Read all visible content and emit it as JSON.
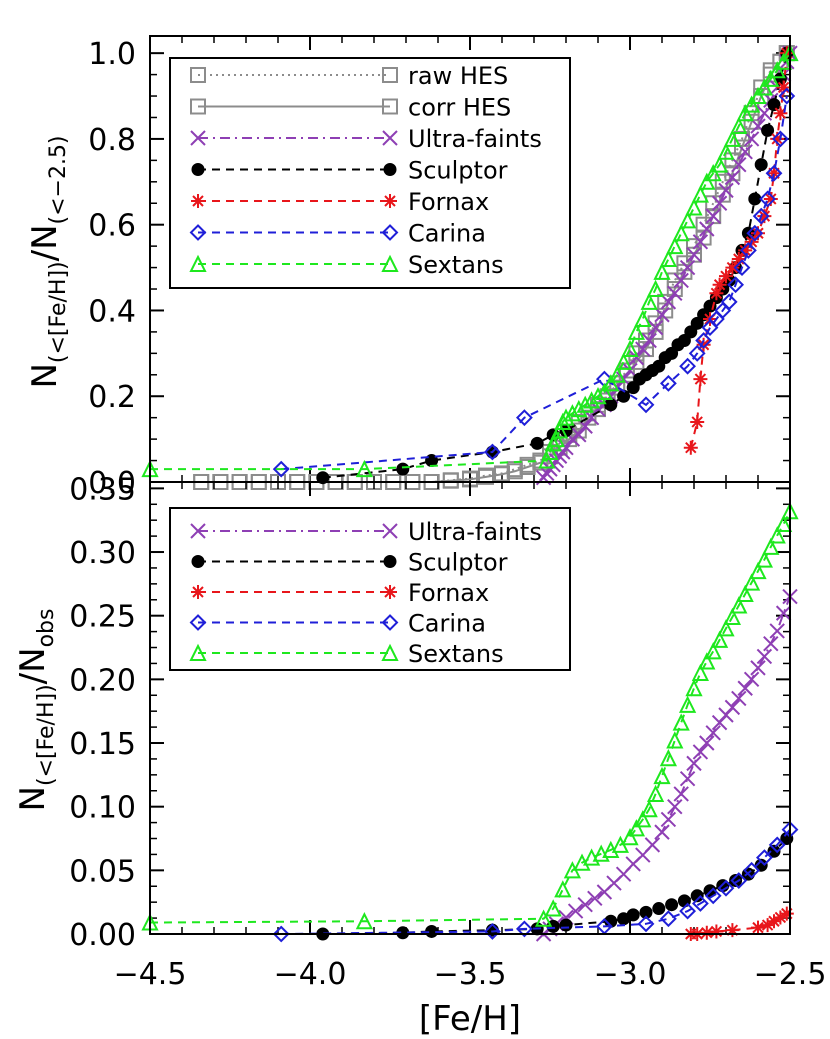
{
  "colors": {
    "raw_hes": "#8c8c8c",
    "corr_hes": "#8c8c8c",
    "ultra_faints": "#8e3fb4",
    "sculptor": "#000000",
    "fornax": "#e8161b",
    "carina": "#1f1fd8",
    "sextans": "#1ee81e"
  },
  "chart_data": [
    {
      "type": "line",
      "panel": "top",
      "ylabel": "N(<[Fe/H])/N(<-2.5)",
      "ylabel_parts": {
        "main": "N",
        "sub1": "(<[Fe/H])",
        "slash": "/N",
        "sub2": "(<−2.5)"
      },
      "xlim": [
        -4.5,
        -2.5
      ],
      "ylim": [
        0.0,
        1.04
      ],
      "yticks": [
        0.0,
        0.2,
        0.4,
        0.6,
        0.8,
        1.0
      ],
      "ytick_labels": [
        "0.0",
        "0.2",
        "0.4",
        "0.6",
        "0.8",
        "1.0"
      ],
      "legend_position": "top-left",
      "series": [
        {
          "key": "raw_hes",
          "name": "raw HES",
          "marker": "square",
          "linestyle": "dotted",
          "x": [
            -4.34,
            -4.28,
            -4.22,
            -4.16,
            -4.1,
            -4.04,
            -3.98,
            -3.92,
            -3.86,
            -3.8,
            -3.74,
            -3.68,
            -3.62,
            -3.56,
            -3.5,
            -3.45,
            -3.4,
            -3.36,
            -3.32,
            -3.28,
            -3.25,
            -3.22,
            -3.19,
            -3.16,
            -3.13,
            -3.1,
            -3.07,
            -3.04,
            -3.01,
            -2.98,
            -2.95,
            -2.92,
            -2.89,
            -2.86,
            -2.83,
            -2.8,
            -2.77,
            -2.74,
            -2.71,
            -2.68,
            -2.65,
            -2.62,
            -2.59,
            -2.56,
            -2.53,
            -2.51
          ],
          "y": [
            0.0,
            0.0,
            0.0,
            0.0,
            0.0,
            0.0,
            0.0,
            0.0,
            0.0,
            0.0,
            0.0,
            0.0,
            0.0,
            0.004,
            0.008,
            0.015,
            0.02,
            0.03,
            0.04,
            0.05,
            0.07,
            0.09,
            0.11,
            0.14,
            0.16,
            0.18,
            0.2,
            0.23,
            0.26,
            0.3,
            0.33,
            0.37,
            0.42,
            0.47,
            0.51,
            0.55,
            0.6,
            0.65,
            0.7,
            0.75,
            0.8,
            0.86,
            0.92,
            0.96,
            0.98,
            1.0
          ]
        },
        {
          "key": "corr_hes",
          "name": "corr HES",
          "marker": "square",
          "linestyle": "solid",
          "x": [
            -4.34,
            -4.28,
            -4.22,
            -4.16,
            -4.1,
            -4.04,
            -3.98,
            -3.92,
            -3.86,
            -3.8,
            -3.74,
            -3.68,
            -3.62,
            -3.56,
            -3.5,
            -3.45,
            -3.4,
            -3.36,
            -3.32,
            -3.28,
            -3.25,
            -3.22,
            -3.19,
            -3.16,
            -3.13,
            -3.1,
            -3.07,
            -3.04,
            -3.01,
            -2.98,
            -2.95,
            -2.92,
            -2.89,
            -2.86,
            -2.83,
            -2.8,
            -2.77,
            -2.74,
            -2.71,
            -2.68,
            -2.65,
            -2.62,
            -2.59,
            -2.56,
            -2.53,
            -2.51
          ],
          "y": [
            0.0,
            0.0,
            0.0,
            0.0,
            0.0,
            0.0,
            0.0,
            0.0,
            0.0,
            0.0,
            0.0,
            0.0,
            0.0,
            0.003,
            0.006,
            0.012,
            0.018,
            0.025,
            0.035,
            0.045,
            0.06,
            0.08,
            0.1,
            0.12,
            0.15,
            0.17,
            0.19,
            0.22,
            0.25,
            0.28,
            0.31,
            0.35,
            0.4,
            0.45,
            0.49,
            0.53,
            0.57,
            0.62,
            0.67,
            0.72,
            0.78,
            0.84,
            0.9,
            0.95,
            0.98,
            1.0
          ]
        },
        {
          "key": "ultra_faints",
          "name": "Ultra-faints",
          "marker": "x",
          "linestyle": "dashdot",
          "x": [
            -3.27,
            -3.26,
            -3.25,
            -3.24,
            -3.23,
            -3.22,
            -3.21,
            -3.2,
            -3.18,
            -3.16,
            -3.14,
            -3.12,
            -3.1,
            -3.08,
            -3.06,
            -3.04,
            -3.02,
            -3.0,
            -2.98,
            -2.96,
            -2.94,
            -2.92,
            -2.9,
            -2.88,
            -2.86,
            -2.84,
            -2.82,
            -2.8,
            -2.78,
            -2.76,
            -2.74,
            -2.72,
            -2.7,
            -2.68,
            -2.66,
            -2.64,
            -2.62,
            -2.6,
            -2.58,
            -2.56,
            -2.54,
            -2.52,
            -2.51,
            -2.5
          ],
          "y": [
            0.01,
            0.02,
            0.03,
            0.04,
            0.05,
            0.06,
            0.07,
            0.08,
            0.1,
            0.11,
            0.13,
            0.15,
            0.17,
            0.18,
            0.2,
            0.22,
            0.24,
            0.26,
            0.29,
            0.31,
            0.33,
            0.36,
            0.39,
            0.42,
            0.44,
            0.47,
            0.5,
            0.53,
            0.56,
            0.59,
            0.62,
            0.65,
            0.68,
            0.71,
            0.74,
            0.77,
            0.8,
            0.83,
            0.86,
            0.89,
            0.92,
            0.95,
            0.98,
            1.0
          ]
        },
        {
          "key": "sculptor",
          "name": "Sculptor",
          "marker": "circle",
          "linestyle": "dashed",
          "x": [
            -3.96,
            -3.71,
            -3.62,
            -3.43,
            -3.29,
            -3.24,
            -3.2,
            -3.06,
            -3.02,
            -2.99,
            -2.97,
            -2.95,
            -2.93,
            -2.91,
            -2.89,
            -2.87,
            -2.85,
            -2.83,
            -2.81,
            -2.79,
            -2.77,
            -2.75,
            -2.73,
            -2.71,
            -2.69,
            -2.67,
            -2.65,
            -2.63,
            -2.61,
            -2.59,
            -2.57,
            -2.55,
            -2.53,
            -2.51
          ],
          "y": [
            0.01,
            0.03,
            0.05,
            0.07,
            0.09,
            0.11,
            0.12,
            0.18,
            0.2,
            0.22,
            0.24,
            0.25,
            0.26,
            0.27,
            0.29,
            0.3,
            0.32,
            0.33,
            0.35,
            0.37,
            0.39,
            0.41,
            0.43,
            0.45,
            0.47,
            0.5,
            0.54,
            0.58,
            0.66,
            0.74,
            0.82,
            0.88,
            0.94,
            1.0
          ]
        },
        {
          "key": "fornax",
          "name": "Fornax",
          "marker": "asterisk",
          "linestyle": "dashed",
          "x": [
            -2.81,
            -2.79,
            -2.78,
            -2.77,
            -2.75,
            -2.73,
            -2.72,
            -2.7,
            -2.68,
            -2.66,
            -2.64,
            -2.62,
            -2.6,
            -2.58,
            -2.56,
            -2.55,
            -2.54,
            -2.53,
            -2.52,
            -2.51
          ],
          "y": [
            0.08,
            0.14,
            0.24,
            0.32,
            0.38,
            0.44,
            0.46,
            0.48,
            0.5,
            0.52,
            0.54,
            0.56,
            0.58,
            0.62,
            0.66,
            0.72,
            0.8,
            0.86,
            0.92,
            1.0
          ]
        },
        {
          "key": "carina",
          "name": "Carina",
          "marker": "diamond",
          "linestyle": "dashed",
          "x": [
            -4.09,
            -3.43,
            -3.33,
            -3.08,
            -2.95,
            -2.88,
            -2.82,
            -2.79,
            -2.77,
            -2.75,
            -2.73,
            -2.71,
            -2.69,
            -2.67,
            -2.65,
            -2.63,
            -2.61,
            -2.59,
            -2.57,
            -2.55,
            -2.53,
            -2.51
          ],
          "y": [
            0.03,
            0.07,
            0.15,
            0.24,
            0.18,
            0.23,
            0.27,
            0.3,
            0.33,
            0.36,
            0.38,
            0.4,
            0.42,
            0.46,
            0.5,
            0.54,
            0.58,
            0.62,
            0.66,
            0.72,
            0.8,
            0.9
          ]
        },
        {
          "key": "sextans",
          "name": "Sextans",
          "marker": "triangle",
          "linestyle": "dashed",
          "x": [
            -4.5,
            -3.83,
            -3.26,
            -3.25,
            -3.24,
            -3.23,
            -3.22,
            -3.21,
            -3.2,
            -3.18,
            -3.16,
            -3.14,
            -3.12,
            -3.1,
            -3.08,
            -3.06,
            -3.04,
            -3.02,
            -3.0,
            -2.98,
            -2.96,
            -2.94,
            -2.92,
            -2.9,
            -2.88,
            -2.86,
            -2.84,
            -2.82,
            -2.8,
            -2.78,
            -2.76,
            -2.74,
            -2.72,
            -2.7,
            -2.68,
            -2.66,
            -2.64,
            -2.62,
            -2.6,
            -2.58,
            -2.56,
            -2.54,
            -2.52,
            -2.5
          ],
          "y": [
            0.03,
            0.03,
            0.05,
            0.07,
            0.09,
            0.1,
            0.12,
            0.14,
            0.15,
            0.16,
            0.17,
            0.18,
            0.19,
            0.2,
            0.21,
            0.23,
            0.25,
            0.28,
            0.31,
            0.35,
            0.38,
            0.42,
            0.45,
            0.49,
            0.52,
            0.55,
            0.58,
            0.61,
            0.64,
            0.67,
            0.7,
            0.72,
            0.74,
            0.77,
            0.8,
            0.83,
            0.86,
            0.88,
            0.9,
            0.92,
            0.94,
            0.96,
            0.98,
            1.0
          ]
        }
      ]
    },
    {
      "type": "line",
      "panel": "bottom",
      "xlabel": "[Fe/H]",
      "ylabel": "N(<[Fe/H])/Nobs",
      "ylabel_parts": {
        "main": "N",
        "sub1": "(<[Fe/H])",
        "slash": "/N",
        "sub2": "obs"
      },
      "xlim": [
        -4.5,
        -2.5
      ],
      "ylim": [
        0.0,
        0.355
      ],
      "xticks": [
        -4.5,
        -4.0,
        -3.5,
        -3.0,
        -2.5
      ],
      "xtick_labels": [
        "−4.5",
        "−4.0",
        "−3.5",
        "−3.0",
        "−2.5"
      ],
      "yticks": [
        0.0,
        0.05,
        0.1,
        0.15,
        0.2,
        0.25,
        0.3,
        0.35
      ],
      "ytick_labels": [
        "0.00",
        "0.05",
        "0.10",
        "0.15",
        "0.20",
        "0.25",
        "0.30",
        "0.35"
      ],
      "legend_position": "top-left",
      "series": [
        {
          "key": "ultra_faints",
          "name": "Ultra-faints",
          "marker": "x",
          "linestyle": "dashdot",
          "x": [
            -3.27,
            -3.25,
            -3.23,
            -3.2,
            -3.17,
            -3.14,
            -3.11,
            -3.08,
            -3.05,
            -3.02,
            -2.99,
            -2.96,
            -2.93,
            -2.9,
            -2.88,
            -2.86,
            -2.84,
            -2.82,
            -2.8,
            -2.78,
            -2.76,
            -2.74,
            -2.72,
            -2.7,
            -2.68,
            -2.66,
            -2.64,
            -2.62,
            -2.6,
            -2.58,
            -2.56,
            -2.54,
            -2.52,
            -2.5
          ],
          "y": [
            0.0,
            0.004,
            0.008,
            0.013,
            0.018,
            0.023,
            0.028,
            0.033,
            0.04,
            0.047,
            0.055,
            0.062,
            0.07,
            0.08,
            0.09,
            0.1,
            0.11,
            0.122,
            0.134,
            0.143,
            0.15,
            0.158,
            0.166,
            0.172,
            0.178,
            0.185,
            0.193,
            0.2,
            0.209,
            0.218,
            0.228,
            0.238,
            0.252,
            0.265
          ]
        },
        {
          "key": "sculptor",
          "name": "Sculptor",
          "marker": "circle",
          "linestyle": "dashed",
          "x": [
            -3.96,
            -3.71,
            -3.62,
            -3.43,
            -3.29,
            -3.24,
            -3.2,
            -3.06,
            -3.02,
            -2.99,
            -2.95,
            -2.91,
            -2.87,
            -2.83,
            -2.79,
            -2.75,
            -2.71,
            -2.67,
            -2.63,
            -2.59,
            -2.55,
            -2.51
          ],
          "y": [
            0.0,
            0.001,
            0.002,
            0.003,
            0.004,
            0.006,
            0.007,
            0.01,
            0.012,
            0.015,
            0.017,
            0.02,
            0.023,
            0.026,
            0.03,
            0.034,
            0.038,
            0.042,
            0.047,
            0.054,
            0.065,
            0.075
          ]
        },
        {
          "key": "fornax",
          "name": "Fornax",
          "marker": "asterisk",
          "linestyle": "dashed",
          "x": [
            -2.81,
            -2.79,
            -2.76,
            -2.73,
            -2.68,
            -2.6,
            -2.57,
            -2.55,
            -2.53,
            -2.51
          ],
          "y": [
            0.0,
            0.0,
            0.001,
            0.002,
            0.003,
            0.005,
            0.007,
            0.01,
            0.013,
            0.016
          ]
        },
        {
          "key": "carina",
          "name": "Carina",
          "marker": "diamond",
          "linestyle": "dashed",
          "x": [
            -4.09,
            -3.43,
            -3.33,
            -3.08,
            -2.95,
            -2.88,
            -2.82,
            -2.78,
            -2.74,
            -2.7,
            -2.66,
            -2.62,
            -2.58,
            -2.54,
            -2.5
          ],
          "y": [
            0.0,
            0.002,
            0.004,
            0.006,
            0.008,
            0.012,
            0.018,
            0.024,
            0.03,
            0.036,
            0.042,
            0.05,
            0.06,
            0.07,
            0.082
          ]
        },
        {
          "key": "sextans",
          "name": "Sextans",
          "marker": "triangle",
          "linestyle": "dashed",
          "x": [
            -4.5,
            -3.83,
            -3.27,
            -3.24,
            -3.21,
            -3.18,
            -3.15,
            -3.12,
            -3.09,
            -3.06,
            -3.03,
            -3.0,
            -2.98,
            -2.96,
            -2.94,
            -2.92,
            -2.9,
            -2.88,
            -2.86,
            -2.84,
            -2.82,
            -2.8,
            -2.78,
            -2.76,
            -2.74,
            -2.72,
            -2.7,
            -2.68,
            -2.66,
            -2.64,
            -2.62,
            -2.6,
            -2.58,
            -2.56,
            -2.54,
            -2.52,
            -2.5
          ],
          "y": [
            0.009,
            0.01,
            0.012,
            0.02,
            0.035,
            0.05,
            0.056,
            0.06,
            0.063,
            0.066,
            0.07,
            0.076,
            0.083,
            0.09,
            0.098,
            0.11,
            0.124,
            0.138,
            0.152,
            0.166,
            0.18,
            0.193,
            0.205,
            0.214,
            0.222,
            0.231,
            0.24,
            0.249,
            0.258,
            0.267,
            0.276,
            0.285,
            0.294,
            0.304,
            0.313,
            0.322,
            0.332
          ]
        }
      ]
    }
  ]
}
